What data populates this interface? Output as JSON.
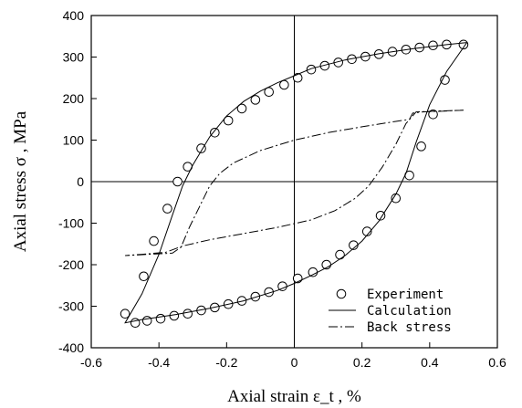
{
  "chart_data": {
    "type": "line",
    "xlabel": "Axial strain ε_t , %",
    "ylabel": "Axial stress σ , MPa",
    "xlim": [
      -0.6,
      0.6
    ],
    "ylim": [
      -400,
      400
    ],
    "x_ticks": [
      "-0.6",
      "-0.4",
      "-0.2",
      "0",
      "0.2",
      "0.4",
      "0.6"
    ],
    "y_ticks": [
      "400",
      "300",
      "200",
      "100",
      "0",
      "-100",
      "-200",
      "-300",
      "-400"
    ],
    "legend_position": "bottom-right",
    "series": [
      {
        "name": "Experiment",
        "style": "circle-markers",
        "points": [
          [
            0.5,
            330
          ],
          [
            0.45,
            330
          ],
          [
            0.41,
            328
          ],
          [
            0.37,
            323
          ],
          [
            0.33,
            318
          ],
          [
            0.29,
            313
          ],
          [
            0.25,
            307
          ],
          [
            0.21,
            301
          ],
          [
            0.17,
            295
          ],
          [
            0.13,
            287
          ],
          [
            0.09,
            279
          ],
          [
            0.05,
            270
          ],
          [
            0.01,
            250
          ],
          [
            -0.03,
            233
          ],
          [
            -0.075,
            216
          ],
          [
            -0.115,
            197
          ],
          [
            -0.155,
            176
          ],
          [
            -0.195,
            147
          ],
          [
            -0.235,
            118
          ],
          [
            -0.275,
            80
          ],
          [
            -0.315,
            36
          ],
          [
            -0.345,
            0
          ],
          [
            -0.375,
            -65
          ],
          [
            -0.415,
            -143
          ],
          [
            -0.445,
            -228
          ],
          [
            -0.5,
            -318
          ],
          [
            -0.47,
            -340
          ],
          [
            -0.435,
            -335
          ],
          [
            -0.395,
            -330
          ],
          [
            -0.355,
            -323
          ],
          [
            -0.315,
            -318
          ],
          [
            -0.275,
            -310
          ],
          [
            -0.235,
            -303
          ],
          [
            -0.195,
            -295
          ],
          [
            -0.155,
            -287
          ],
          [
            -0.115,
            -277
          ],
          [
            -0.075,
            -266
          ],
          [
            -0.035,
            -252
          ],
          [
            0.01,
            -233
          ],
          [
            0.055,
            -218
          ],
          [
            0.095,
            -200
          ],
          [
            0.135,
            -176
          ],
          [
            0.175,
            -153
          ],
          [
            0.215,
            -120
          ],
          [
            0.255,
            -82
          ],
          [
            0.3,
            -40
          ],
          [
            0.34,
            15
          ],
          [
            0.375,
            85
          ],
          [
            0.41,
            162
          ],
          [
            0.445,
            245
          ]
        ]
      },
      {
        "name": "Calculation",
        "style": "solid",
        "points": [
          [
            0.51,
            335
          ],
          [
            0.45,
            330
          ],
          [
            0.35,
            320
          ],
          [
            0.25,
            308
          ],
          [
            0.15,
            293
          ],
          [
            0.05,
            272
          ],
          [
            0.0,
            255
          ],
          [
            -0.05,
            238
          ],
          [
            -0.1,
            218
          ],
          [
            -0.15,
            193
          ],
          [
            -0.2,
            158
          ],
          [
            -0.25,
            108
          ],
          [
            -0.3,
            40
          ],
          [
            -0.33,
            -10
          ],
          [
            -0.36,
            -80
          ],
          [
            -0.4,
            -175
          ],
          [
            -0.45,
            -270
          ],
          [
            -0.5,
            -340
          ],
          [
            -0.45,
            -332
          ],
          [
            -0.35,
            -320
          ],
          [
            -0.25,
            -305
          ],
          [
            -0.15,
            -287
          ],
          [
            -0.05,
            -262
          ],
          [
            0.0,
            -245
          ],
          [
            0.05,
            -226
          ],
          [
            0.1,
            -205
          ],
          [
            0.15,
            -178
          ],
          [
            0.2,
            -143
          ],
          [
            0.25,
            -95
          ],
          [
            0.3,
            -30
          ],
          [
            0.33,
            20
          ],
          [
            0.36,
            95
          ],
          [
            0.4,
            185
          ],
          [
            0.45,
            265
          ],
          [
            0.51,
            335
          ]
        ]
      },
      {
        "name": "Back stress",
        "style": "dash-dot",
        "points": [
          [
            0.5,
            172
          ],
          [
            0.45,
            170
          ],
          [
            0.38,
            168
          ],
          [
            0.35,
            165
          ],
          [
            0.34,
            150
          ],
          [
            0.3,
            145
          ],
          [
            0.2,
            132
          ],
          [
            0.1,
            118
          ],
          [
            0.0,
            100
          ],
          [
            -0.1,
            75
          ],
          [
            -0.18,
            45
          ],
          [
            -0.22,
            20
          ],
          [
            -0.25,
            -10
          ],
          [
            -0.28,
            -60
          ],
          [
            -0.31,
            -110
          ],
          [
            -0.335,
            -158
          ],
          [
            -0.36,
            -172
          ],
          [
            -0.5,
            -178
          ],
          [
            -0.45,
            -175
          ],
          [
            -0.38,
            -170
          ],
          [
            -0.33,
            -155
          ],
          [
            -0.25,
            -140
          ],
          [
            -0.15,
            -125
          ],
          [
            -0.05,
            -110
          ],
          [
            0.05,
            -92
          ],
          [
            0.12,
            -70
          ],
          [
            0.18,
            -40
          ],
          [
            0.22,
            -10
          ],
          [
            0.26,
            35
          ],
          [
            0.3,
            90
          ],
          [
            0.33,
            140
          ],
          [
            0.36,
            168
          ],
          [
            0.5,
            172
          ]
        ]
      }
    ]
  }
}
